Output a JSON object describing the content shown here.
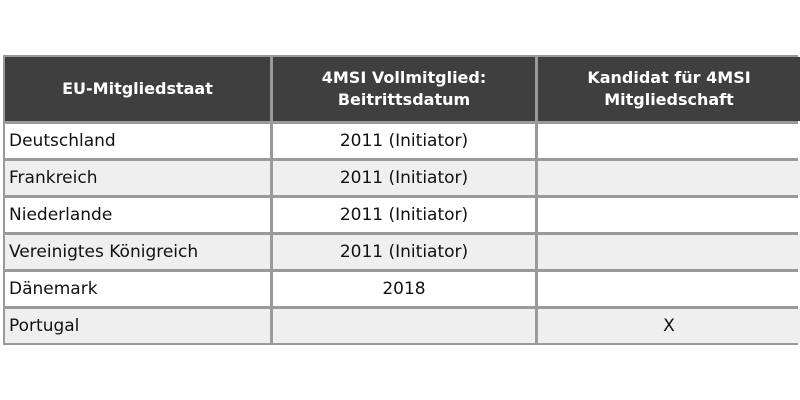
{
  "table": {
    "headers": [
      "EU-Mitgliedstaat",
      "4MSI Vollmitglied: Beitrittsdatum",
      "Kandidat für 4MSI Mitgliedschaft"
    ],
    "rows": [
      {
        "state": "Deutschland",
        "full_member": "2011 (Initiator)",
        "candidate": ""
      },
      {
        "state": "Frankreich",
        "full_member": "2011 (Initiator)",
        "candidate": ""
      },
      {
        "state": "Niederlande",
        "full_member": "2011 (Initiator)",
        "candidate": ""
      },
      {
        "state": "Vereinigtes Königreich",
        "full_member": "2011 (Initiator)",
        "candidate": ""
      },
      {
        "state": "Dänemark",
        "full_member": "2018",
        "candidate": ""
      },
      {
        "state": "Portugal",
        "full_member": "",
        "candidate": "X"
      }
    ]
  }
}
